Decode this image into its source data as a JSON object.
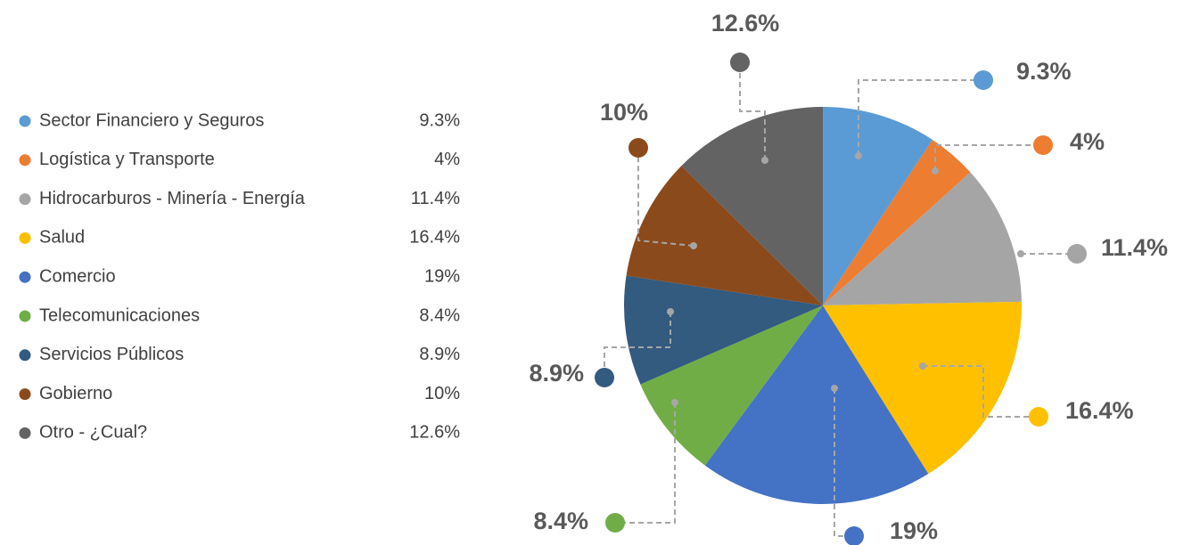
{
  "chart_data": {
    "type": "pie",
    "categories": [
      "Sector Financiero y Seguros",
      "Logística y Transporte",
      "Hidrocarburos - Minería - Energía",
      "Salud",
      "Comercio",
      "Telecomunicaciones",
      "Servicios Públicos",
      "Gobierno",
      "Otro - ¿Cual?"
    ],
    "values": [
      9.3,
      4,
      11.4,
      16.4,
      19,
      8.4,
      8.9,
      10,
      12.6
    ],
    "value_labels": [
      "9.3%",
      "4%",
      "11.4%",
      "16.4%",
      "19%",
      "8.4%",
      "8.9%",
      "10%",
      "12.6%"
    ],
    "colors": [
      "#5b9bd5",
      "#ed7d31",
      "#a5a5a5",
      "#ffc000",
      "#4472c4",
      "#70ad47",
      "#335a7f",
      "#8b4a1c",
      "#636363"
    ],
    "legend": "left"
  }
}
